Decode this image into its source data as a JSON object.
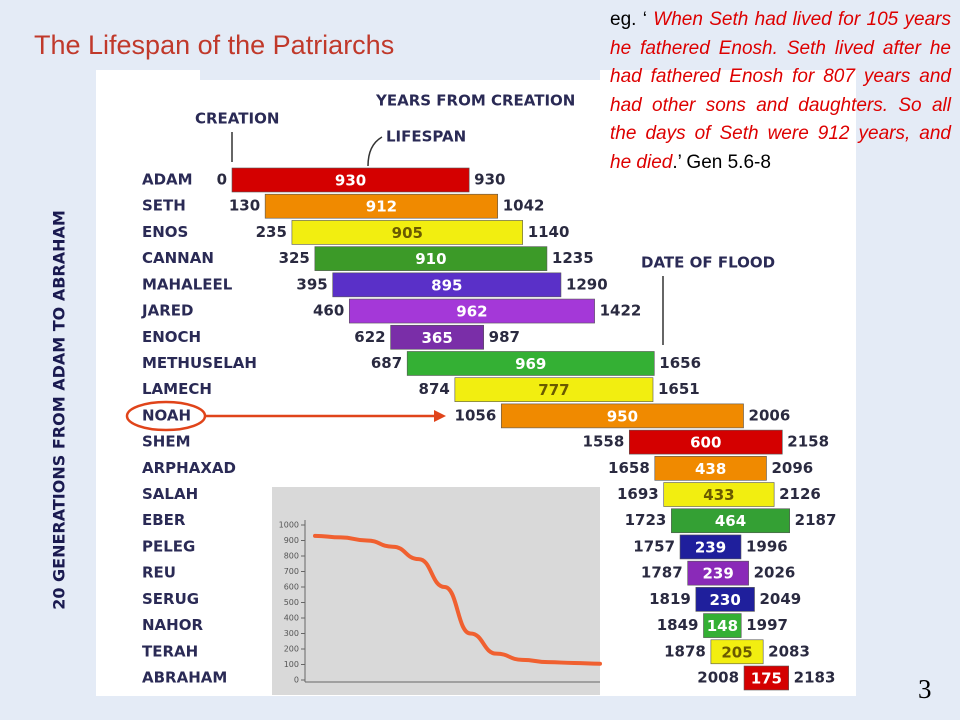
{
  "chart_data": [
    {
      "type": "range_bar",
      "title": "The Lifespan of the Patriarchs",
      "side_label": "20 GENERATIONS FROM ADAM TO ABRAHAM",
      "annotations": {
        "creation": "CREATION",
        "years": "YEARS FROM CREATION",
        "lifespan": "LIFESPAN",
        "flood": "DATE OF FLOOD"
      },
      "categories": [
        "ADAM",
        "SETH",
        "ENOS",
        "CANNAN",
        "MAHALEEL",
        "JARED",
        "ENOCH",
        "METHUSELAH",
        "LAMECH",
        "NOAH",
        "SHEM",
        "ARPHAXAD",
        "SALAH",
        "EBER",
        "PELEG",
        "REU",
        "SERUG",
        "NAHOR",
        "TERAH",
        "ABRAHAM"
      ],
      "start": [
        0,
        130,
        235,
        325,
        395,
        460,
        622,
        687,
        874,
        1056,
        1558,
        1658,
        1693,
        1723,
        1757,
        1787,
        1819,
        1849,
        1878,
        2008
      ],
      "lifespan": [
        930,
        912,
        905,
        910,
        895,
        962,
        365,
        969,
        777,
        950,
        600,
        438,
        433,
        464,
        239,
        239,
        230,
        148,
        205,
        175
      ],
      "end": [
        930,
        1042,
        1140,
        1235,
        1290,
        1422,
        987,
        1656,
        1651,
        2006,
        2158,
        2096,
        2126,
        2187,
        1996,
        2026,
        2049,
        1997,
        2083,
        2183
      ],
      "colors": [
        "#d40000",
        "#f08a00",
        "#f2ee10",
        "#3c9a28",
        "#5a30c8",
        "#a438d8",
        "#7a2ea8",
        "#34b034",
        "#f2ee10",
        "#f08a00",
        "#d40000",
        "#f08a00",
        "#f2ee10",
        "#34a034",
        "#1f1f9c",
        "#8a2ab8",
        "#1f1f9c",
        "#34b034",
        "#f2ee10",
        "#d40000"
      ],
      "xlim": [
        0,
        2200
      ]
    },
    {
      "type": "line",
      "values": [
        930,
        920,
        900,
        860,
        780,
        600,
        300,
        170,
        130,
        115,
        110,
        105
      ],
      "color": "#f06030",
      "ylim": [
        0,
        1000
      ],
      "yticks": [
        0,
        100,
        200,
        300,
        400,
        500,
        600,
        700,
        800,
        900,
        1000
      ]
    }
  ],
  "quote": {
    "lead": "eg. ‘",
    "text": "When Seth had lived for 105 years he fathered Enosh. Seth lived after he had fathered Enosh for 807 years and had other sons and daughters. So all the days of Seth were 912 years, and he died",
    "tail": ".’",
    "ref": "Gen 5.6-8"
  },
  "page_number": "3"
}
